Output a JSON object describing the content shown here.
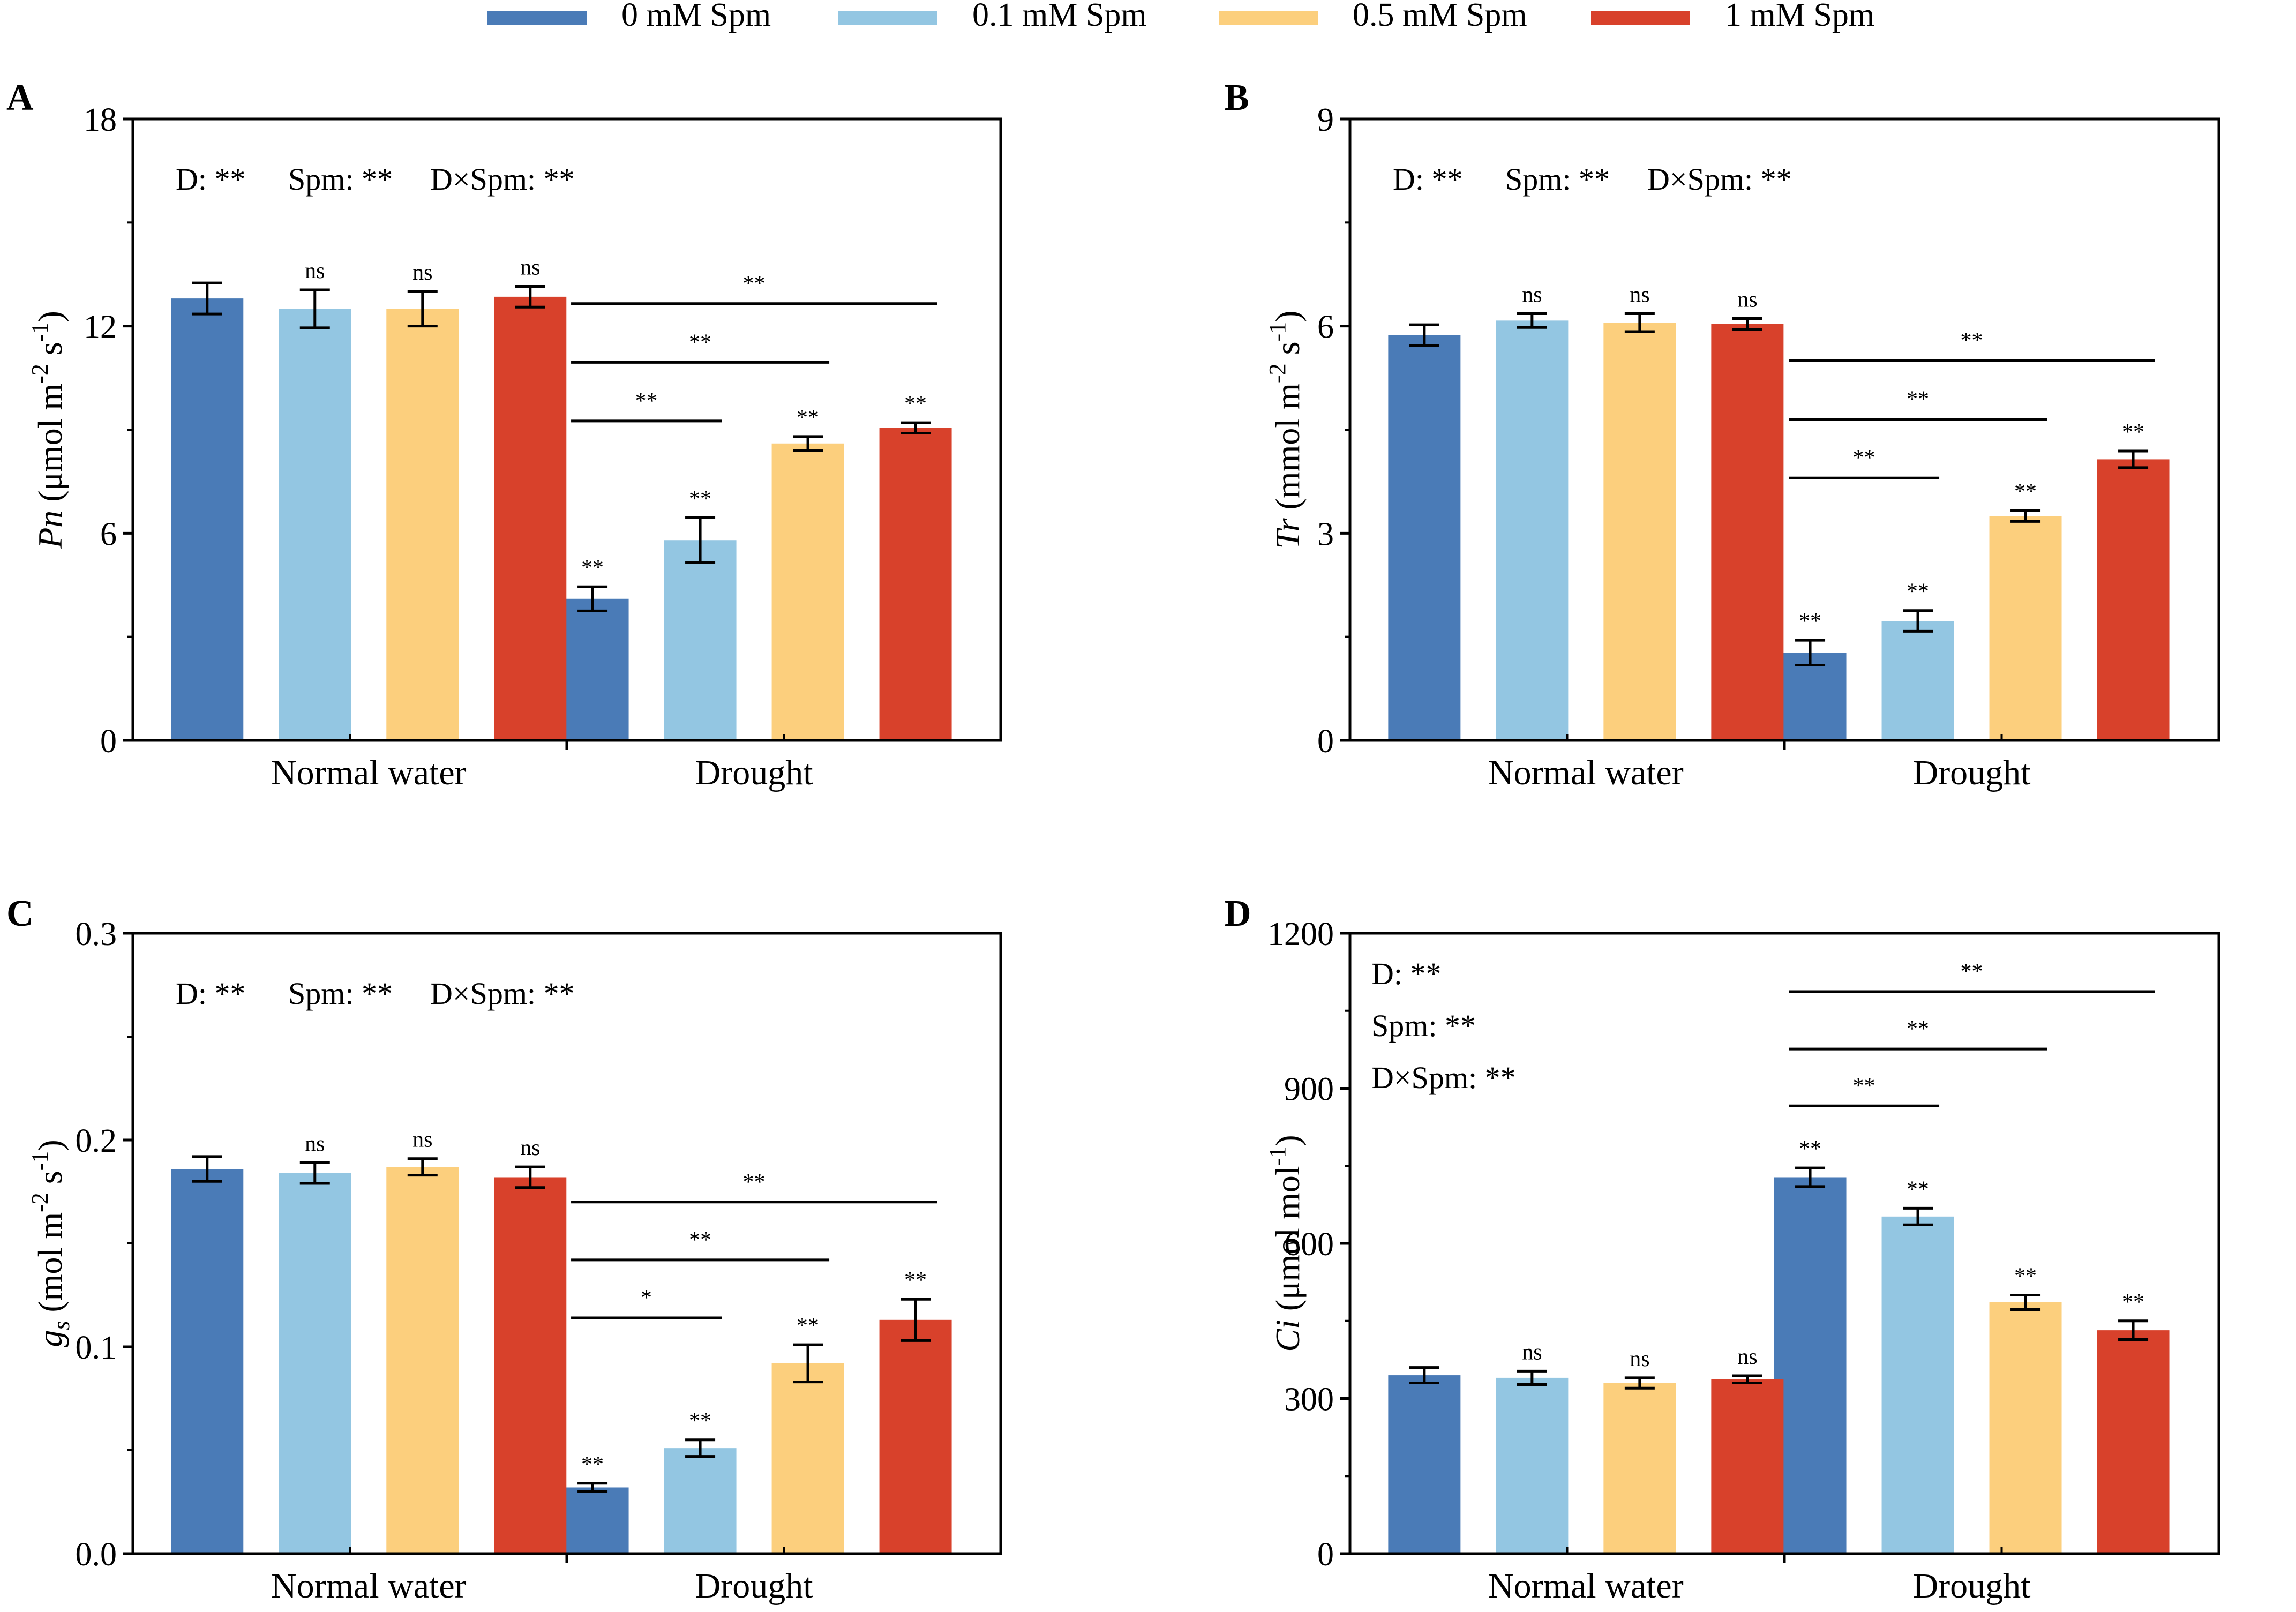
{
  "legend": {
    "items": [
      {
        "label": "0 mM Spm",
        "color": "#4a7bb7"
      },
      {
        "label": "0.1 mM Spm",
        "color": "#93c6e2"
      },
      {
        "label": "0.5 mM Spm",
        "color": "#fccf7d"
      },
      {
        "label": "1 mM Spm",
        "color": "#d8412b"
      }
    ]
  },
  "chart_data": [
    {
      "panel": "A",
      "type": "bar",
      "ylabel": {
        "italic": "Pn",
        "rest": " (μmol m",
        "sup1": "-2",
        "mid": " s",
        "sup2": "-1",
        "end": ")"
      },
      "ylim": [
        0,
        18
      ],
      "yticks": [
        0,
        6,
        12,
        18
      ],
      "yticklabels": [
        "0",
        "6",
        "12",
        "18"
      ],
      "categories": [
        "Normal water",
        "Drought"
      ],
      "series": [
        {
          "name": "0 mM Spm",
          "values": [
            12.8,
            4.1
          ],
          "errors": [
            0.45,
            0.35
          ],
          "labels": [
            "",
            "**"
          ]
        },
        {
          "name": "0.1 mM Spm",
          "values": [
            12.5,
            5.8
          ],
          "errors": [
            0.55,
            0.65
          ],
          "labels": [
            "ns",
            "**"
          ]
        },
        {
          "name": "0.5 mM Spm",
          "values": [
            12.5,
            8.6
          ],
          "errors": [
            0.5,
            0.2
          ],
          "labels": [
            "ns",
            "**"
          ]
        },
        {
          "name": "1 mM Spm",
          "values": [
            12.85,
            9.05
          ],
          "errors": [
            0.3,
            0.15
          ],
          "labels": [
            "ns",
            "**"
          ]
        }
      ],
      "annotation": [
        "D: **",
        "Spm: **",
        "D×Spm: **"
      ],
      "annotation_layout": "row",
      "comparisons": [
        {
          "from": 0,
          "to": 1,
          "label": "**"
        },
        {
          "from": 0,
          "to": 2,
          "label": "**"
        },
        {
          "from": 0,
          "to": 3,
          "label": "**"
        }
      ],
      "comparison_levels": [
        9.25,
        10.95,
        12.65
      ]
    },
    {
      "panel": "B",
      "type": "bar",
      "ylabel": {
        "italic": "Tr",
        "rest": " (mmol m",
        "sup1": "-2",
        "mid": " s",
        "sup2": "-1",
        "end": ")"
      },
      "ylim": [
        0,
        9
      ],
      "yticks": [
        0,
        3,
        6,
        9
      ],
      "yticklabels": [
        "0",
        "3",
        "6",
        "9"
      ],
      "categories": [
        "Normal water",
        "Drought"
      ],
      "series": [
        {
          "name": "0 mM Spm",
          "values": [
            5.87,
            1.27
          ],
          "errors": [
            0.15,
            0.18
          ],
          "labels": [
            "",
            "**"
          ]
        },
        {
          "name": "0.1 mM Spm",
          "values": [
            6.08,
            1.73
          ],
          "errors": [
            0.1,
            0.15
          ],
          "labels": [
            "ns",
            "**"
          ]
        },
        {
          "name": "0.5 mM Spm",
          "values": [
            6.05,
            3.25
          ],
          "errors": [
            0.13,
            0.08
          ],
          "labels": [
            "ns",
            "**"
          ]
        },
        {
          "name": "1 mM Spm",
          "values": [
            6.03,
            4.07
          ],
          "errors": [
            0.08,
            0.12
          ],
          "labels": [
            "ns",
            "**"
          ]
        }
      ],
      "annotation": [
        "D: **",
        "Spm: **",
        "D×Spm: **"
      ],
      "annotation_layout": "row",
      "comparisons": [
        {
          "from": 0,
          "to": 1,
          "label": "**"
        },
        {
          "from": 0,
          "to": 2,
          "label": "**"
        },
        {
          "from": 0,
          "to": 3,
          "label": "**"
        }
      ],
      "comparison_levels": [
        3.8,
        4.65,
        5.5
      ]
    },
    {
      "panel": "C",
      "type": "bar",
      "ylabel": {
        "italic": "g",
        "sub": "s",
        "rest": " (mol m",
        "sup1": "-2",
        "mid": " s",
        "sup2": "-1",
        "end": ")"
      },
      "ylim": [
        0,
        0.3
      ],
      "yticks": [
        0,
        0.1,
        0.2,
        0.3
      ],
      "yticklabels": [
        "0.0",
        "0.1",
        "0.2",
        "0.3"
      ],
      "categories": [
        "Normal water",
        "Drought"
      ],
      "series": [
        {
          "name": "0 mM Spm",
          "values": [
            0.186,
            0.032
          ],
          "errors": [
            0.006,
            0.002
          ],
          "labels": [
            "",
            "**"
          ]
        },
        {
          "name": "0.1 mM Spm",
          "values": [
            0.184,
            0.051
          ],
          "errors": [
            0.005,
            0.004
          ],
          "labels": [
            "ns",
            "**"
          ]
        },
        {
          "name": "0.5 mM Spm",
          "values": [
            0.187,
            0.092
          ],
          "errors": [
            0.004,
            0.009
          ],
          "labels": [
            "ns",
            "**"
          ]
        },
        {
          "name": "1 mM Spm",
          "values": [
            0.182,
            0.113
          ],
          "errors": [
            0.005,
            0.01
          ],
          "labels": [
            "ns",
            "**"
          ]
        }
      ],
      "annotation": [
        "D: **",
        "Spm: **",
        "D×Spm: **"
      ],
      "annotation_layout": "row",
      "comparisons": [
        {
          "from": 0,
          "to": 1,
          "label": "*"
        },
        {
          "from": 0,
          "to": 2,
          "label": "**"
        },
        {
          "from": 0,
          "to": 3,
          "label": "**"
        }
      ],
      "comparison_levels": [
        0.114,
        0.142,
        0.17
      ]
    },
    {
      "panel": "D",
      "type": "bar",
      "ylabel": {
        "italic": "Ci",
        "rest": " (μmol mol",
        "sup1": "-1",
        "end": ")"
      },
      "ylim": [
        0,
        1200
      ],
      "yticks": [
        0,
        300,
        600,
        900,
        1200
      ],
      "yticklabels": [
        "0",
        "300",
        "600",
        "900",
        "1200"
      ],
      "categories": [
        "Normal water",
        "Drought"
      ],
      "series": [
        {
          "name": "0 mM Spm",
          "values": [
            345,
            728
          ],
          "errors": [
            15,
            18
          ],
          "labels": [
            "",
            "**"
          ]
        },
        {
          "name": "0.1 mM Spm",
          "values": [
            340,
            652
          ],
          "errors": [
            13,
            16
          ],
          "labels": [
            "ns",
            "**"
          ]
        },
        {
          "name": "0.5 mM Spm",
          "values": [
            330,
            486
          ],
          "errors": [
            10,
            14
          ],
          "labels": [
            "ns",
            "**"
          ]
        },
        {
          "name": "1 mM Spm",
          "values": [
            337,
            432
          ],
          "errors": [
            7,
            18
          ],
          "labels": [
            "ns",
            "**"
          ]
        }
      ],
      "annotation": [
        "D: **",
        "Spm: **",
        "D×Spm: **"
      ],
      "annotation_layout": "column",
      "comparisons": [
        {
          "from": 0,
          "to": 1,
          "label": "**"
        },
        {
          "from": 0,
          "to": 2,
          "label": "**"
        },
        {
          "from": 0,
          "to": 3,
          "label": "**"
        }
      ],
      "comparison_levels": [
        866,
        976,
        1087
      ]
    }
  ]
}
